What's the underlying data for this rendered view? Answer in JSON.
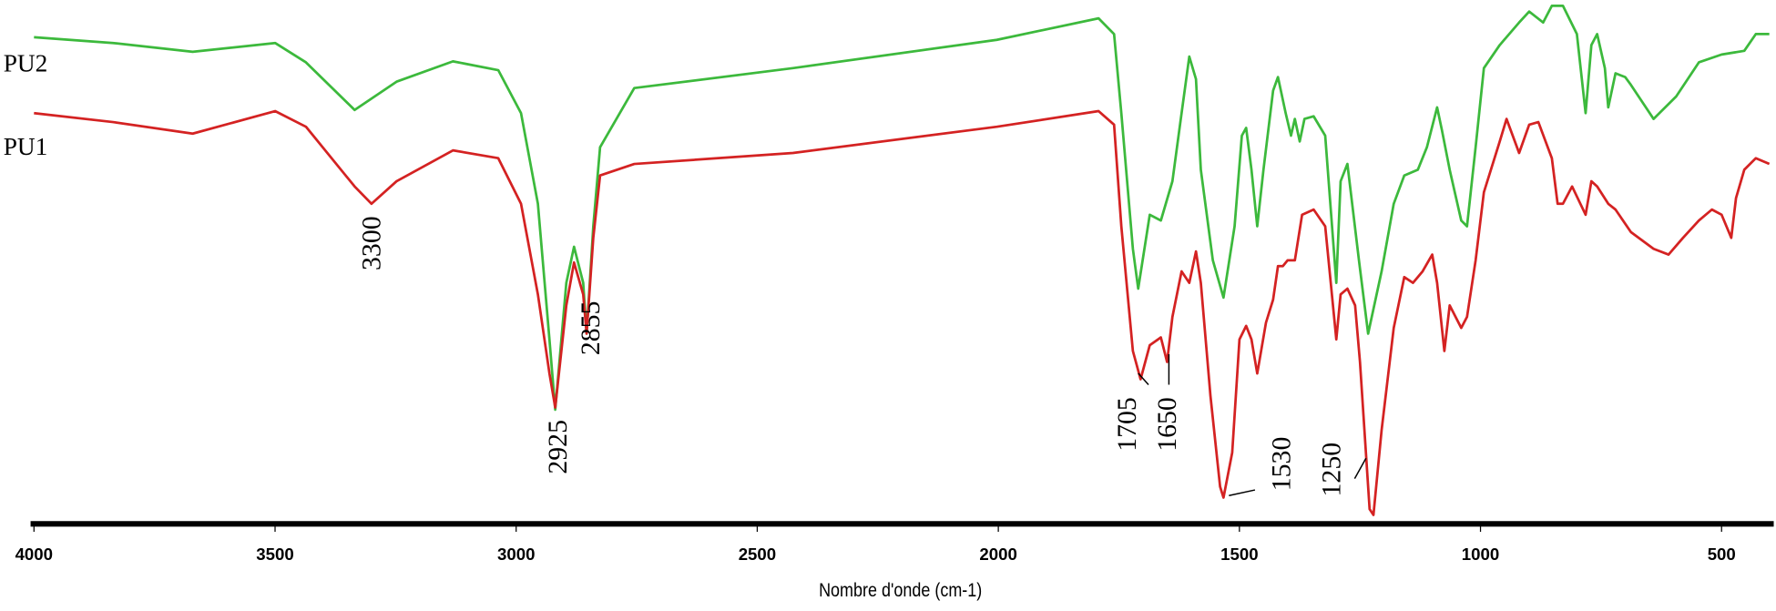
{
  "chart_data": {
    "type": "line",
    "title": "",
    "xlabel": "Nombre d'onde (cm-1)",
    "ylabel": "",
    "xlim": [
      4000,
      400
    ],
    "x_reversed": true,
    "ylim": [
      0,
      100
    ],
    "y_axis_shown": false,
    "grid": false,
    "xticks": [
      4000,
      3500,
      3000,
      2500,
      2000,
      1500,
      1000,
      500
    ],
    "xtick_labels": [
      "4000",
      "3500",
      "3000",
      "2500",
      "2000",
      "1500",
      "1000",
      "500"
    ],
    "series": [
      {
        "name": "PU2",
        "color": "#3cb93c",
        "points": [
          [
            4000,
            92.9
          ],
          [
            3836,
            91.8
          ],
          [
            3671,
            90.1
          ],
          [
            3500,
            91.8
          ],
          [
            3436,
            88.1
          ],
          [
            3335,
            79.0
          ],
          [
            3248,
            84.4
          ],
          [
            3131,
            88.3
          ],
          [
            3037,
            86.6
          ],
          [
            2990,
            78.4
          ],
          [
            2955,
            61.1
          ],
          [
            2931,
            35.2
          ],
          [
            2919,
            21.8
          ],
          [
            2896,
            46.0
          ],
          [
            2880,
            52.9
          ],
          [
            2861,
            46.0
          ],
          [
            2854,
            36.3
          ],
          [
            2840,
            56.8
          ],
          [
            2826,
            71.9
          ],
          [
            2755,
            83.2
          ],
          [
            2426,
            87.0
          ],
          [
            2003,
            92.4
          ],
          [
            1792,
            96.5
          ],
          [
            1760,
            93.5
          ],
          [
            1745,
            78.4
          ],
          [
            1721,
            52.5
          ],
          [
            1710,
            44.9
          ],
          [
            1686,
            59.0
          ],
          [
            1663,
            57.9
          ],
          [
            1639,
            65.4
          ],
          [
            1620,
            78.4
          ],
          [
            1604,
            89.2
          ],
          [
            1590,
            84.9
          ],
          [
            1580,
            67.6
          ],
          [
            1555,
            50.3
          ],
          [
            1533,
            43.2
          ],
          [
            1510,
            56.8
          ],
          [
            1495,
            74.1
          ],
          [
            1486,
            75.6
          ],
          [
            1475,
            67.6
          ],
          [
            1463,
            56.8
          ],
          [
            1450,
            67.6
          ],
          [
            1430,
            82.7
          ],
          [
            1420,
            85.3
          ],
          [
            1404,
            78.4
          ],
          [
            1393,
            74.1
          ],
          [
            1385,
            77.3
          ],
          [
            1375,
            73.0
          ],
          [
            1365,
            77.3
          ],
          [
            1346,
            77.8
          ],
          [
            1322,
            74.1
          ],
          [
            1299,
            46.0
          ],
          [
            1290,
            65.4
          ],
          [
            1276,
            68.7
          ],
          [
            1252,
            50.3
          ],
          [
            1233,
            36.3
          ],
          [
            1205,
            48.2
          ],
          [
            1180,
            61.1
          ],
          [
            1158,
            66.5
          ],
          [
            1130,
            67.6
          ],
          [
            1111,
            71.9
          ],
          [
            1090,
            79.5
          ],
          [
            1080,
            75.2
          ],
          [
            1064,
            67.6
          ],
          [
            1040,
            57.9
          ],
          [
            1028,
            56.8
          ],
          [
            1010,
            71.9
          ],
          [
            993,
            87.0
          ],
          [
            960,
            91.4
          ],
          [
            920,
            95.7
          ],
          [
            899,
            97.8
          ],
          [
            870,
            95.7
          ],
          [
            852,
            98.9
          ],
          [
            829,
            98.9
          ],
          [
            800,
            93.5
          ],
          [
            782,
            78.4
          ],
          [
            770,
            91.4
          ],
          [
            758,
            93.5
          ],
          [
            742,
            87.0
          ],
          [
            735,
            79.5
          ],
          [
            720,
            86.0
          ],
          [
            700,
            85.3
          ],
          [
            688,
            83.8
          ],
          [
            641,
            77.3
          ],
          [
            594,
            81.6
          ],
          [
            547,
            88.1
          ],
          [
            500,
            89.6
          ],
          [
            453,
            90.3
          ],
          [
            429,
            93.5
          ],
          [
            401,
            93.5
          ]
        ]
      },
      {
        "name": "PU1",
        "color": "#d42222",
        "points": [
          [
            4000,
            78.4
          ],
          [
            3836,
            76.7
          ],
          [
            3671,
            74.5
          ],
          [
            3500,
            78.8
          ],
          [
            3436,
            75.8
          ],
          [
            3335,
            64.4
          ],
          [
            3300,
            61.1
          ],
          [
            3248,
            65.4
          ],
          [
            3131,
            71.3
          ],
          [
            3037,
            69.8
          ],
          [
            2990,
            61.1
          ],
          [
            2955,
            43.8
          ],
          [
            2931,
            28.7
          ],
          [
            2919,
            22.2
          ],
          [
            2896,
            41.7
          ],
          [
            2880,
            49.9
          ],
          [
            2861,
            43.8
          ],
          [
            2854,
            36.3
          ],
          [
            2840,
            54.6
          ],
          [
            2826,
            66.5
          ],
          [
            2755,
            68.7
          ],
          [
            2426,
            70.8
          ],
          [
            2003,
            75.8
          ],
          [
            1792,
            78.8
          ],
          [
            1760,
            76.2
          ],
          [
            1745,
            56.8
          ],
          [
            1721,
            33.0
          ],
          [
            1705,
            27.6
          ],
          [
            1686,
            34.1
          ],
          [
            1663,
            35.6
          ],
          [
            1650,
            30.9
          ],
          [
            1639,
            39.5
          ],
          [
            1620,
            48.2
          ],
          [
            1604,
            46.0
          ],
          [
            1590,
            52.0
          ],
          [
            1580,
            46.0
          ],
          [
            1560,
            24.4
          ],
          [
            1540,
            7.1
          ],
          [
            1533,
            5.0
          ],
          [
            1515,
            13.6
          ],
          [
            1500,
            35.2
          ],
          [
            1486,
            37.8
          ],
          [
            1475,
            35.2
          ],
          [
            1463,
            28.7
          ],
          [
            1445,
            38.4
          ],
          [
            1430,
            42.8
          ],
          [
            1420,
            49.2
          ],
          [
            1410,
            49.2
          ],
          [
            1400,
            50.3
          ],
          [
            1385,
            50.3
          ],
          [
            1370,
            59.0
          ],
          [
            1346,
            60.0
          ],
          [
            1322,
            56.8
          ],
          [
            1299,
            35.2
          ],
          [
            1290,
            43.8
          ],
          [
            1276,
            44.9
          ],
          [
            1260,
            41.7
          ],
          [
            1250,
            30.9
          ],
          [
            1230,
            2.8
          ],
          [
            1222,
            1.7
          ],
          [
            1205,
            17.9
          ],
          [
            1180,
            37.4
          ],
          [
            1158,
            47.1
          ],
          [
            1140,
            46.0
          ],
          [
            1120,
            48.2
          ],
          [
            1100,
            51.4
          ],
          [
            1090,
            46.0
          ],
          [
            1075,
            33.0
          ],
          [
            1064,
            41.7
          ],
          [
            1040,
            37.4
          ],
          [
            1028,
            39.5
          ],
          [
            1010,
            50.3
          ],
          [
            993,
            63.3
          ],
          [
            960,
            73.0
          ],
          [
            946,
            77.3
          ],
          [
            920,
            70.8
          ],
          [
            899,
            76.2
          ],
          [
            880,
            76.7
          ],
          [
            852,
            69.8
          ],
          [
            840,
            61.1
          ],
          [
            829,
            61.1
          ],
          [
            810,
            64.4
          ],
          [
            782,
            59.0
          ],
          [
            770,
            65.4
          ],
          [
            758,
            64.4
          ],
          [
            735,
            61.1
          ],
          [
            720,
            60.0
          ],
          [
            688,
            55.7
          ],
          [
            641,
            52.5
          ],
          [
            610,
            51.4
          ],
          [
            580,
            54.6
          ],
          [
            547,
            57.9
          ],
          [
            520,
            60.0
          ],
          [
            500,
            59.0
          ],
          [
            480,
            54.6
          ],
          [
            470,
            62.2
          ],
          [
            453,
            67.6
          ],
          [
            429,
            69.8
          ],
          [
            401,
            68.7
          ]
        ]
      }
    ],
    "annotations": [
      {
        "text": "3300",
        "wavenumber": 3300
      },
      {
        "text": "2925",
        "wavenumber": 2925
      },
      {
        "text": "2855",
        "wavenumber": 2855
      },
      {
        "text": "1705",
        "wavenumber": 1705
      },
      {
        "text": "1650",
        "wavenumber": 1650
      },
      {
        "text": "1530",
        "wavenumber": 1530
      },
      {
        "text": "1250",
        "wavenumber": 1250
      }
    ]
  }
}
